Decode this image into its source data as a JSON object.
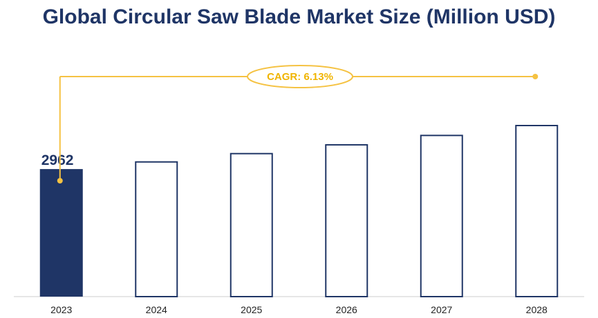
{
  "chart_data": {
    "type": "bar",
    "title": "Global Circular Saw Blade Market Size (Million USD)",
    "categories": [
      "2023",
      "2024",
      "2025",
      "2026",
      "2027",
      "2028"
    ],
    "values": [
      2962,
      3144,
      3337,
      3541,
      3759,
      3989
    ],
    "value_labels": [
      "2962",
      "",
      "",
      "",
      "",
      ""
    ],
    "annotation": "CAGR: 6.13%",
    "xlabel": "",
    "ylabel": "",
    "ylim": [
      0,
      3989
    ],
    "grid": false,
    "legend": "none",
    "colors": {
      "filled_bar": "#1f3566",
      "outline_bar": "#1f3566",
      "cagr_line": "#f5c242",
      "cagr_text": "#f0b400",
      "axis": "#cccccc"
    }
  }
}
